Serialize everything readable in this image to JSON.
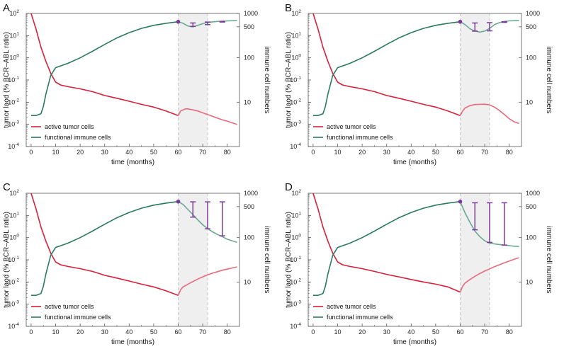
{
  "colors": {
    "tumor": "#d6203a",
    "tumor_light": "#e86a7a",
    "immune": "#2a7a62",
    "immune_light": "#6aa894",
    "treatment": "#7a3a9a",
    "shade": "#efefef",
    "frame": "#555555"
  },
  "chart_data": [
    {
      "type": "line",
      "panel": "A",
      "xlabel": "time (months)",
      "ylabel_left": "tumor laod (% BCR–ABL ratio)",
      "ylabel_right": "immune cell numbers",
      "xlim": [
        -2,
        85
      ],
      "xticks": [
        0,
        10,
        20,
        30,
        40,
        50,
        60,
        70,
        80
      ],
      "ylim_left_log10": [
        -4,
        2
      ],
      "yticks_left": [
        {
          "exp": 2,
          "label": "10"
        },
        {
          "exp": 1,
          "label": "10"
        },
        {
          "exp": 0,
          "label": "10"
        },
        {
          "exp": -1,
          "label": "10"
        },
        {
          "exp": -2,
          "label": "10"
        },
        {
          "exp": -3,
          "label": "10"
        },
        {
          "exp": -4,
          "label": "10"
        }
      ],
      "ylim_right": [
        1,
        1000
      ],
      "yticks_right": [
        {
          "value": 1000,
          "label": "1000"
        },
        {
          "value": 500,
          "label": "500"
        },
        {
          "value": 100,
          "label": "100"
        },
        {
          "value": 10,
          "label": "10"
        }
      ],
      "shaded_interval": [
        60,
        72
      ],
      "legend": [
        "active tumor cells",
        "functional immune cells"
      ],
      "series": [
        {
          "name": "active tumor cells",
          "axis": "left",
          "x": [
            0,
            2,
            4,
            6,
            8,
            10,
            12,
            15,
            20,
            25,
            30,
            35,
            40,
            45,
            50,
            55,
            60,
            61,
            62,
            63,
            64,
            66,
            68,
            70,
            72,
            74,
            76,
            78,
            80,
            84
          ],
          "y": [
            100,
            20,
            3,
            0.7,
            0.2,
            0.08,
            0.06,
            0.05,
            0.04,
            0.03,
            0.02,
            0.015,
            0.011,
            0.008,
            0.006,
            0.004,
            0.0025,
            0.004,
            0.0045,
            0.005,
            0.005,
            0.0045,
            0.004,
            0.0033,
            0.0028,
            0.0023,
            0.0019,
            0.0016,
            0.0014,
            0.001
          ]
        },
        {
          "name": "functional immune cells",
          "axis": "right",
          "x": [
            0,
            2,
            4,
            5,
            6,
            8,
            10,
            15,
            20,
            25,
            30,
            35,
            40,
            45,
            50,
            55,
            60,
            62,
            64,
            66,
            68,
            70,
            72,
            76,
            80,
            84
          ],
          "y": [
            5,
            5,
            5.5,
            8,
            15,
            40,
            60,
            75,
            100,
            140,
            200,
            280,
            370,
            460,
            540,
            600,
            650,
            600,
            520,
            500,
            540,
            590,
            630,
            660,
            680,
            690
          ]
        }
      ],
      "treatment": {
        "x": [
          60,
          66,
          72,
          78
        ],
        "top": [
          650,
          610,
          640,
          660
        ],
        "bottom": [
          650,
          510,
          560,
          640
        ]
      }
    },
    {
      "type": "line",
      "panel": "B",
      "xlabel": "time (months)",
      "ylabel_left": "tumor laod (% BCR–ABL ratio)",
      "ylabel_right": "immune cell numbers",
      "xlim": [
        -2,
        85
      ],
      "xticks": [
        0,
        10,
        20,
        30,
        40,
        50,
        60,
        70,
        80
      ],
      "ylim_left_log10": [
        -4,
        2
      ],
      "yticks_left": [
        {
          "exp": 2,
          "label": "10"
        },
        {
          "exp": 1,
          "label": "10"
        },
        {
          "exp": 0,
          "label": "10"
        },
        {
          "exp": -1,
          "label": "10"
        },
        {
          "exp": -2,
          "label": "10"
        },
        {
          "exp": -3,
          "label": "10"
        },
        {
          "exp": -4,
          "label": "10"
        }
      ],
      "ylim_right": [
        1,
        1000
      ],
      "yticks_right": [
        {
          "value": 1000,
          "label": "1000"
        },
        {
          "value": 500,
          "label": "500"
        },
        {
          "value": 100,
          "label": "100"
        },
        {
          "value": 10,
          "label": "10"
        }
      ],
      "shaded_interval": [
        60,
        72
      ],
      "legend": [
        "active tumor cells",
        "functional immune cells"
      ],
      "series": [
        {
          "name": "active tumor cells",
          "axis": "left",
          "x": [
            0,
            2,
            4,
            6,
            8,
            10,
            12,
            15,
            20,
            25,
            30,
            35,
            40,
            45,
            50,
            55,
            60,
            61,
            62,
            64,
            66,
            68,
            70,
            72,
            74,
            76,
            78,
            80,
            82,
            84
          ],
          "y": [
            100,
            20,
            3,
            0.7,
            0.2,
            0.08,
            0.06,
            0.05,
            0.04,
            0.03,
            0.02,
            0.015,
            0.011,
            0.008,
            0.006,
            0.004,
            0.0025,
            0.004,
            0.0055,
            0.007,
            0.0078,
            0.008,
            0.0081,
            0.0075,
            0.006,
            0.0042,
            0.0028,
            0.0018,
            0.0013,
            0.0011
          ]
        },
        {
          "name": "functional immune cells",
          "axis": "right",
          "x": [
            0,
            2,
            4,
            5,
            6,
            8,
            10,
            15,
            20,
            25,
            30,
            35,
            40,
            45,
            50,
            55,
            60,
            62,
            64,
            66,
            68,
            70,
            72,
            74,
            76,
            78,
            80,
            84
          ],
          "y": [
            5,
            5,
            5.5,
            8,
            15,
            40,
            60,
            75,
            100,
            140,
            200,
            280,
            370,
            460,
            540,
            600,
            650,
            560,
            450,
            400,
            380,
            400,
            460,
            560,
            620,
            660,
            680,
            690
          ]
        }
      ],
      "treatment": {
        "x": [
          60,
          66,
          72,
          78
        ],
        "top": [
          650,
          610,
          620,
          650
        ],
        "bottom": [
          650,
          400,
          405,
          630
        ]
      }
    },
    {
      "type": "line",
      "panel": "C",
      "xlabel": "time (months)",
      "ylabel_left": "tumor laod (% BCR–ABL ratio)",
      "ylabel_right": "immune cell numbers",
      "xlim": [
        -2,
        85
      ],
      "xticks": [
        0,
        10,
        20,
        30,
        40,
        50,
        60,
        70,
        80
      ],
      "ylim_left_log10": [
        -4,
        2
      ],
      "yticks_left": [
        {
          "exp": 2,
          "label": "10"
        },
        {
          "exp": 1,
          "label": "10"
        },
        {
          "exp": 0,
          "label": "10"
        },
        {
          "exp": -1,
          "label": "10"
        },
        {
          "exp": -2,
          "label": "10"
        },
        {
          "exp": -3,
          "label": "10"
        },
        {
          "exp": -4,
          "label": "10"
        }
      ],
      "ylim_right": [
        1,
        1000
      ],
      "yticks_right": [
        {
          "value": 1000,
          "label": "1000"
        },
        {
          "value": 500,
          "label": "500"
        },
        {
          "value": 100,
          "label": "100"
        },
        {
          "value": 10,
          "label": "10"
        }
      ],
      "shaded_interval": [
        60,
        72
      ],
      "legend": [
        "active tumor cells",
        "functional immune cells"
      ],
      "series": [
        {
          "name": "active tumor cells",
          "axis": "left",
          "x": [
            0,
            2,
            4,
            6,
            8,
            10,
            12,
            15,
            20,
            25,
            30,
            35,
            40,
            45,
            50,
            55,
            60,
            61,
            62,
            64,
            66,
            68,
            70,
            72,
            74,
            76,
            78,
            80,
            82,
            84
          ],
          "y": [
            100,
            20,
            3,
            0.7,
            0.2,
            0.08,
            0.06,
            0.05,
            0.04,
            0.03,
            0.02,
            0.015,
            0.011,
            0.008,
            0.006,
            0.004,
            0.0025,
            0.0045,
            0.006,
            0.008,
            0.0105,
            0.0135,
            0.017,
            0.021,
            0.025,
            0.029,
            0.034,
            0.038,
            0.043,
            0.048
          ]
        },
        {
          "name": "functional immune cells",
          "axis": "right",
          "x": [
            0,
            2,
            4,
            5,
            6,
            8,
            10,
            15,
            20,
            25,
            30,
            35,
            40,
            45,
            50,
            55,
            60,
            62,
            64,
            66,
            68,
            70,
            72,
            74,
            76,
            78,
            80,
            82,
            84
          ],
          "y": [
            5,
            5,
            5.5,
            8,
            15,
            40,
            60,
            75,
            100,
            140,
            200,
            280,
            370,
            460,
            540,
            600,
            650,
            560,
            430,
            330,
            250,
            195,
            160,
            135,
            118,
            105,
            92,
            85,
            78
          ]
        }
      ],
      "treatment": {
        "x": [
          60,
          66,
          72,
          78
        ],
        "top": [
          650,
          640,
          640,
          640
        ],
        "bottom": [
          650,
          290,
          158,
          110
        ]
      }
    },
    {
      "type": "line",
      "panel": "D",
      "xlabel": "time (months)",
      "ylabel_left": "tumor laod (% BCR–ABL ratio)",
      "ylabel_right": "immune cell numbers",
      "xlim": [
        -2,
        85
      ],
      "xticks": [
        0,
        10,
        20,
        30,
        40,
        50,
        60,
        70,
        80
      ],
      "ylim_left_log10": [
        -4,
        2
      ],
      "yticks_left": [
        {
          "exp": 2,
          "label": "10"
        },
        {
          "exp": 1,
          "label": "10"
        },
        {
          "exp": 0,
          "label": "10"
        },
        {
          "exp": -1,
          "label": "10"
        },
        {
          "exp": -2,
          "label": "10"
        },
        {
          "exp": -3,
          "label": "10"
        },
        {
          "exp": -4,
          "label": "10"
        }
      ],
      "ylim_right": [
        1,
        1000
      ],
      "yticks_right": [
        {
          "value": 1000,
          "label": "1000"
        },
        {
          "value": 500,
          "label": "500"
        },
        {
          "value": 100,
          "label": "100"
        },
        {
          "value": 10,
          "label": "10"
        }
      ],
      "shaded_interval": [
        60,
        72
      ],
      "legend": [
        "active tumor cells",
        "functional immune cells"
      ],
      "series": [
        {
          "name": "active tumor cells",
          "axis": "left",
          "x": [
            0,
            2,
            4,
            6,
            8,
            10,
            12,
            15,
            20,
            25,
            30,
            35,
            40,
            45,
            50,
            55,
            60,
            61,
            62,
            64,
            66,
            68,
            70,
            72,
            74,
            76,
            78,
            80,
            82,
            84
          ],
          "y": [
            100,
            20,
            3,
            0.7,
            0.2,
            0.08,
            0.06,
            0.05,
            0.04,
            0.03,
            0.022,
            0.017,
            0.013,
            0.01,
            0.008,
            0.006,
            0.0035,
            0.0065,
            0.009,
            0.013,
            0.018,
            0.024,
            0.031,
            0.039,
            0.049,
            0.06,
            0.073,
            0.088,
            0.105,
            0.125
          ]
        },
        {
          "name": "functional immune cells",
          "axis": "right",
          "x": [
            0,
            2,
            4,
            5,
            6,
            8,
            10,
            15,
            20,
            25,
            30,
            35,
            40,
            45,
            50,
            55,
            60,
            61,
            62,
            64,
            66,
            68,
            70,
            72,
            74,
            76,
            78,
            80,
            82,
            84
          ],
          "y": [
            5,
            5,
            5.5,
            8,
            15,
            40,
            60,
            75,
            100,
            140,
            200,
            280,
            370,
            460,
            540,
            600,
            650,
            480,
            360,
            220,
            140,
            105,
            85,
            75,
            72,
            70,
            68,
            66,
            64,
            63
          ]
        }
      ],
      "treatment": {
        "x": [
          60,
          66,
          72,
          78
        ],
        "top": [
          650,
          610,
          610,
          610
        ],
        "bottom": [
          650,
          150,
          78,
          68
        ]
      }
    }
  ]
}
